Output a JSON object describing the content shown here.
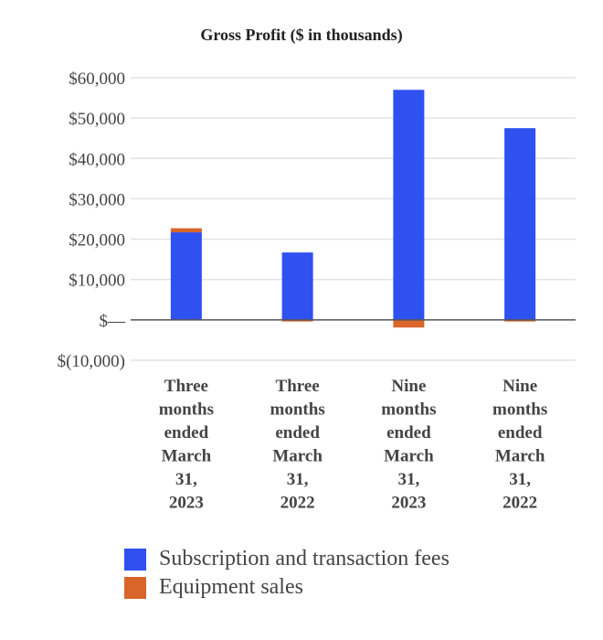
{
  "chart_data": {
    "type": "bar",
    "stacked": true,
    "title": "Gross Profit ($ in thousands)",
    "categories": [
      [
        "Three",
        "months",
        "ended",
        "March",
        "31,",
        "2023"
      ],
      [
        "Three",
        "months",
        "ended",
        "March",
        "31,",
        "2022"
      ],
      [
        "Nine",
        "months",
        "ended",
        "March",
        "31,",
        "2023"
      ],
      [
        "Nine",
        "months",
        "ended",
        "March",
        "31,",
        "2022"
      ]
    ],
    "series": [
      {
        "name": "Subscription and transaction fees",
        "color": "#2f51f0",
        "values": [
          21700,
          16700,
          57000,
          47500
        ]
      },
      {
        "name": "Equipment sales",
        "color": "#d9652b",
        "values": [
          1000,
          -400,
          -1900,
          -400
        ]
      }
    ],
    "ylim": [
      -10000,
      60000
    ],
    "yticks": [
      60000,
      50000,
      40000,
      30000,
      20000,
      10000,
      0,
      -10000
    ],
    "ytick_labels": [
      "$60,000",
      "$50,000",
      "$40,000",
      "$30,000",
      "$20,000",
      "$10,000",
      "$—",
      "$(10,000)"
    ],
    "grid": true,
    "legend_position": "bottom"
  }
}
